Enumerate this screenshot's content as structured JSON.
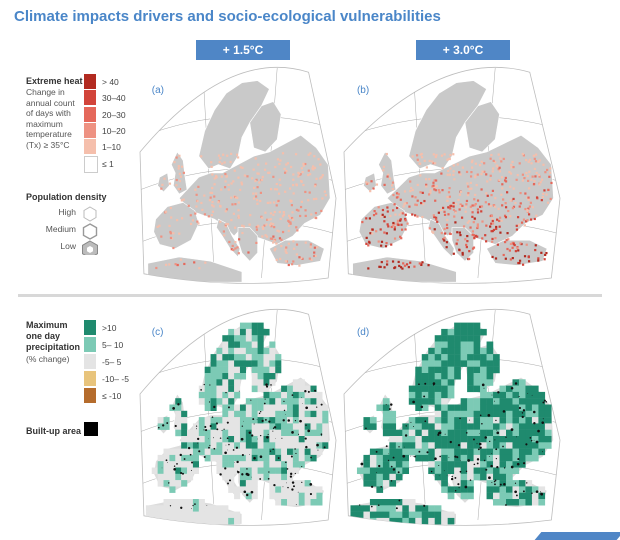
{
  "title": "Climate impacts drivers and socio-ecological vulnerabilities",
  "scenarios": [
    "+ 1.5°C",
    "+ 3.0°C"
  ],
  "panels": [
    "(a)",
    "(b)",
    "(c)",
    "(d)"
  ],
  "heat_legend": {
    "title": "Extreme heat",
    "description": "Change in annual count of days with maximum temperature (Tx) ≥ 35°C",
    "classes": [
      {
        "label": "> 40",
        "color": "#b22a20"
      },
      {
        "label": "30–40",
        "color": "#d2443a"
      },
      {
        "label": "20–30",
        "color": "#e5685b"
      },
      {
        "label": "10–20",
        "color": "#ee9282"
      },
      {
        "label": "1–10",
        "color": "#f5bfac"
      },
      {
        "label": "≤ 1",
        "color": "#ffffff"
      }
    ]
  },
  "population": {
    "title": "Population density",
    "levels": [
      "High",
      "Medium",
      "Low"
    ]
  },
  "precip_legend": {
    "title": "Maximum one day precipitation",
    "subtitle": "(% change)",
    "classes": [
      {
        "label": ">10",
        "color": "#1f8a6e"
      },
      {
        "label": "5– 10",
        "color": "#7ccab5"
      },
      {
        "label": "-5– 5",
        "color": "#e4e4e4"
      },
      {
        "label": "-10– -5",
        "color": "#e8c47c"
      },
      {
        "label": "≤ -10",
        "color": "#b56c2c"
      }
    ]
  },
  "builtup": {
    "label": "Built-up area",
    "color": "#000000"
  },
  "colors": {
    "accent": "#4f86c6",
    "land": "#c9c9c9",
    "sea": "#ffffff",
    "grid": "#a9a9a9"
  },
  "chart_data": {
    "type": "heatmap",
    "title": "Climate impacts drivers and socio-ecological vulnerabilities",
    "panels": [
      {
        "label": "(a)",
        "scenario": "+ 1.5°C",
        "variable": "Extreme heat",
        "dominant_classes": [
          "1–10",
          "10–20"
        ]
      },
      {
        "label": "(b)",
        "scenario": "+ 3.0°C",
        "variable": "Extreme heat",
        "dominant_classes": [
          "10–20",
          "20–30",
          "30–40",
          "> 40"
        ]
      },
      {
        "label": "(c)",
        "scenario": "+ 1.5°C",
        "variable": "Maximum one day precipitation",
        "dominant_classes": [
          "-5– 5",
          "5– 10"
        ]
      },
      {
        "label": "(d)",
        "scenario": "+ 3.0°C",
        "variable": "Maximum one day precipitation",
        "dominant_classes": [
          ">10",
          "5– 10"
        ]
      }
    ]
  }
}
